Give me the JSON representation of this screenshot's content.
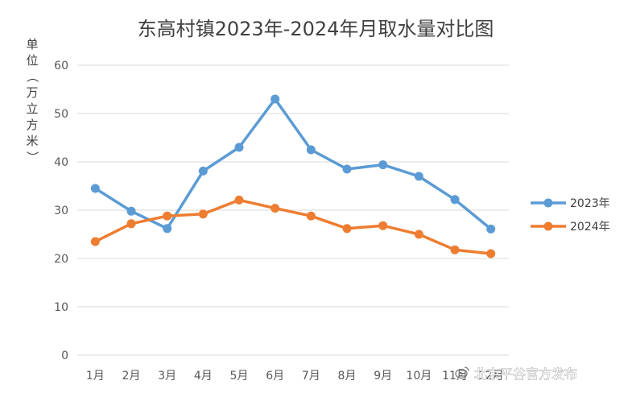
{
  "chart_data": {
    "type": "line",
    "title": "东高村镇2023年-2024年月取水量对比图",
    "ylabel": "单位（万立方米）",
    "xlabel": "",
    "categories": [
      "1月",
      "2月",
      "3月",
      "4月",
      "5月",
      "6月",
      "7月",
      "8月",
      "9月",
      "10月",
      "11月",
      "12月"
    ],
    "ylim": [
      0,
      60
    ],
    "yticks": [
      "0",
      "10",
      "20",
      "30",
      "40",
      "50",
      "60"
    ],
    "grid": true,
    "legend_position": "right",
    "series": [
      {
        "name": "2023年",
        "color": "#5b9bd5",
        "values": [
          34.5,
          29.8,
          26.2,
          38.1,
          43.0,
          53.0,
          42.5,
          38.5,
          39.4,
          37.0,
          32.2,
          26.1
        ]
      },
      {
        "name": "2024年",
        "color": "#ed7d31",
        "values": [
          23.5,
          27.2,
          28.8,
          29.2,
          32.1,
          30.4,
          28.8,
          26.2,
          26.8,
          25.0,
          21.8,
          21.0
        ]
      }
    ]
  },
  "watermark": {
    "text": "北京平谷官方发布",
    "icon": "weibo-logo-icon"
  }
}
